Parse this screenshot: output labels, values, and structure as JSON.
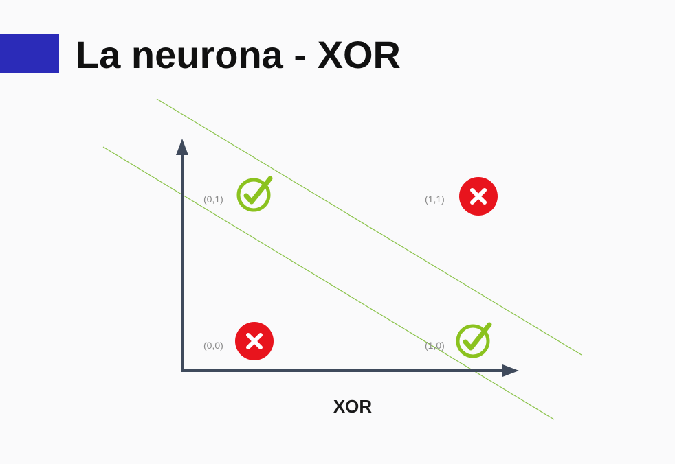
{
  "slide": {
    "title": "La neurona - XOR",
    "accent_color": "#2b2bb8"
  },
  "diagram": {
    "axis_caption": "XOR",
    "axis_color": "#3f4a5c",
    "boundary_color": "#8bc34a",
    "check_color": "#8bc21f",
    "cross_color": "#e8141d",
    "points": [
      {
        "label": "(0,1)",
        "result": "check-icon"
      },
      {
        "label": "(1,1)",
        "result": "cross-icon"
      },
      {
        "label": "(0,0)",
        "result": "cross-icon"
      },
      {
        "label": "(1,0)",
        "result": "check-icon"
      }
    ]
  }
}
